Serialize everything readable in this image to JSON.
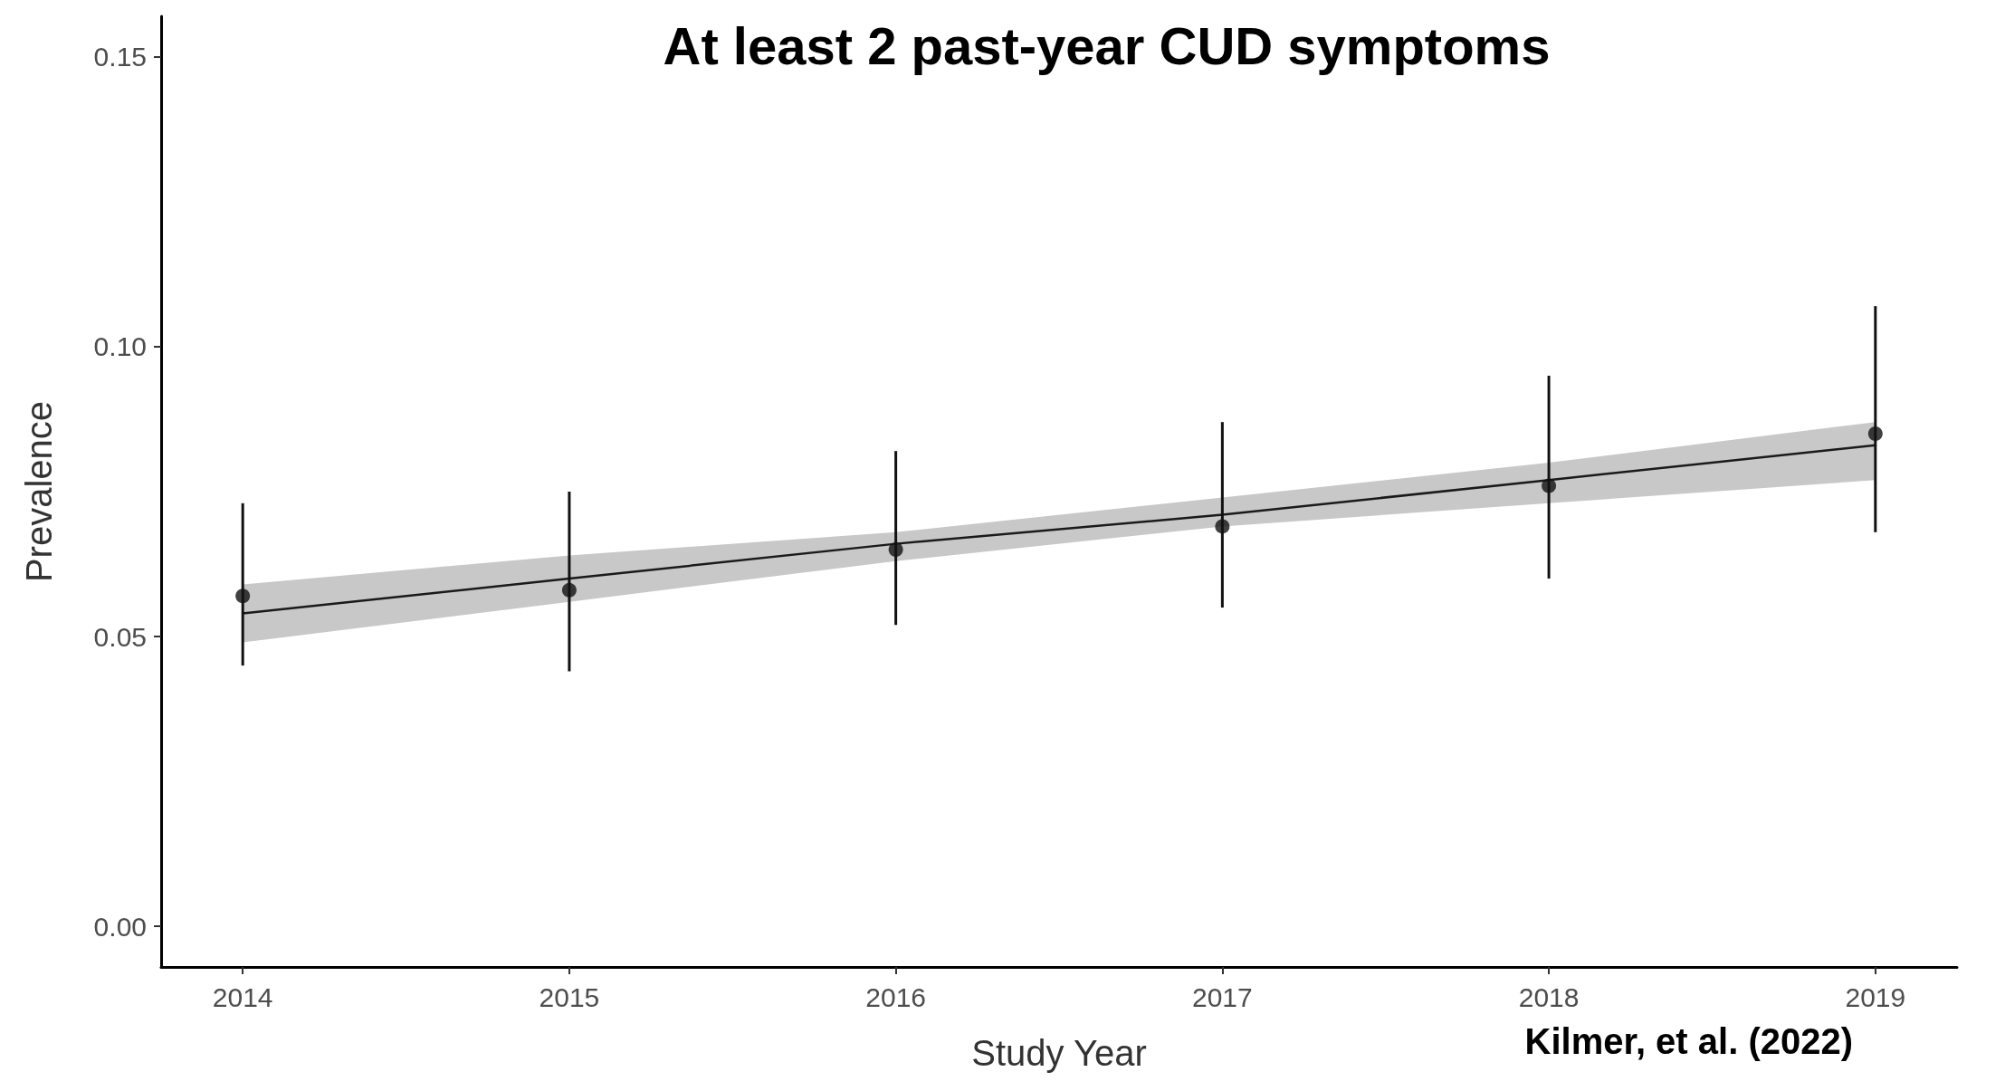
{
  "chart_data": {
    "type": "scatter",
    "title": "At least 2 past-year CUD symptoms",
    "xlabel": "Study Year",
    "ylabel": "Prevalence",
    "annotations": [
      "Kilmer, et al. (2022)"
    ],
    "x": [
      2014,
      2015,
      2016,
      2017,
      2018,
      2019
    ],
    "series": [
      {
        "color": "#111111",
        "values": [
          0.057,
          0.058,
          0.065,
          0.069,
          0.076,
          0.085
        ],
        "errors": [
          [
            0.045,
            0.073
          ],
          [
            0.044,
            0.075
          ],
          [
            0.052,
            0.082
          ],
          [
            0.055,
            0.087
          ],
          [
            0.06,
            0.095
          ],
          [
            0.068,
            0.107
          ]
        ]
      },
      {
        "type": "line",
        "color": "#1a1a1a",
        "marker": "none",
        "x": [
          2014,
          2015,
          2016,
          2017,
          2018,
          2019
        ],
        "values": [
          0.054,
          0.06,
          0.066,
          0.071,
          0.077,
          0.083
        ],
        "lower": [
          0.049,
          0.056,
          0.063,
          0.069,
          0.073,
          0.077
        ],
        "upper": [
          0.059,
          0.064,
          0.068,
          0.074,
          0.08,
          0.087
        ]
      }
    ],
    "marker": "circle",
    "grid": false,
    "xlim": [
      2013.75,
      2019.25
    ],
    "xticks": [
      2014,
      2015,
      2016,
      2017,
      2018,
      2019
    ],
    "ylim": [
      -0.007,
      0.157
    ],
    "yticks": [
      {
        "value": 0,
        "label": "0.00"
      },
      {
        "value": 0.05,
        "label": "0.05"
      },
      {
        "value": 0.1,
        "label": "0.10"
      },
      {
        "value": 0.15,
        "label": "0.15"
      }
    ]
  }
}
